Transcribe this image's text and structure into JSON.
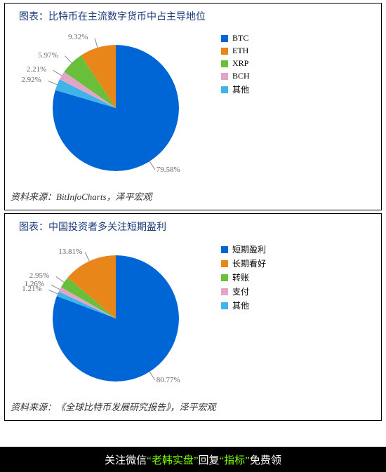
{
  "chart1": {
    "title": "图表：比特币在主流数字货币中占主导地位",
    "type": "pie",
    "source": "资料来源：BitInfoCharts，泽平宏观",
    "slices": [
      {
        "label": "BTC",
        "value": 79.58,
        "color": "#0066d6",
        "text": "79.58%"
      },
      {
        "label": "ETH",
        "value": 9.32,
        "color": "#e8861a",
        "text": "9.32%"
      },
      {
        "label": "XRP",
        "value": 5.97,
        "color": "#6abf3a",
        "text": "5.97%"
      },
      {
        "label": "BCH",
        "value": 2.21,
        "color": "#e3a5c7",
        "text": "2.21%"
      },
      {
        "label": "其他",
        "value": 2.92,
        "color": "#3fb4e8",
        "text": "2.92%"
      }
    ],
    "background_color": "#ffffff",
    "label_fontsize": 11,
    "title_color": "#1a3a7a"
  },
  "chart2": {
    "title": "图表：中国投资者多关注短期盈利",
    "type": "pie",
    "source": "资料来源：《全球比特币发展研究报告》，泽平宏观",
    "slices": [
      {
        "label": "短期盈利",
        "value": 80.77,
        "color": "#0066d6",
        "text": "80.77%"
      },
      {
        "label": "长期看好",
        "value": 13.81,
        "color": "#e8861a",
        "text": "13.81%"
      },
      {
        "label": "转账",
        "value": 2.95,
        "color": "#6abf3a",
        "text": "2.95%"
      },
      {
        "label": "支付",
        "value": 1.26,
        "color": "#e3a5c7",
        "text": "1.26%"
      },
      {
        "label": "其他",
        "value": 1.21,
        "color": "#3fb4e8",
        "text": "1.21%"
      }
    ],
    "background_color": "#ffffff",
    "label_fontsize": 11,
    "title_color": "#1a3a7a"
  },
  "footer": {
    "pre": "关注微信",
    "q1": "“老韩实盘”",
    "mid": "回复",
    "q2": "“指标”",
    "post": "免费领",
    "highlight_color": "#7cfc00",
    "bg": "#000000"
  }
}
